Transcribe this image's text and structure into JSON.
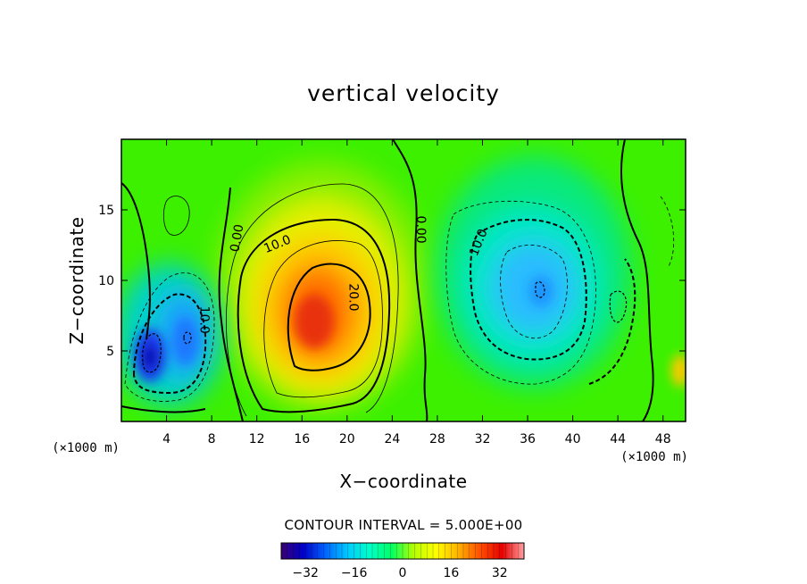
{
  "chart_data": {
    "type": "contour",
    "title": "vertical velocity",
    "xlabel": "X−coordinate",
    "ylabel": "Z−coordinate",
    "x_unit_label": "(×1000 m)",
    "z_unit_label": "(×1000 m)",
    "xlim": [
      0,
      50
    ],
    "ylim": [
      0,
      20
    ],
    "x_ticks": [
      4,
      8,
      12,
      16,
      20,
      24,
      28,
      32,
      36,
      40,
      44,
      48
    ],
    "y_ticks": [
      5,
      10,
      15
    ],
    "contour_interval_text": "CONTOUR INTERVAL = 5.000E+00",
    "contour_interval": 5.0,
    "colorbar": {
      "range": [
        -40,
        40
      ],
      "ticks": [
        -32,
        -16,
        0,
        16,
        32
      ],
      "tick_labels": [
        "−32",
        "−16",
        "0",
        "16",
        "32"
      ],
      "colors": [
        "#3a0070",
        "#0000c8",
        "#0064ff",
        "#00c8ff",
        "#00ffc8",
        "#00ff64",
        "#b4ff00",
        "#ffff00",
        "#ffb400",
        "#ff5000",
        "#e60000",
        "#ffa0a0"
      ]
    },
    "contour_labels": [
      {
        "text": "0.00",
        "x": 10.2,
        "z": 13.0,
        "rotate": -80
      },
      {
        "text": "10.0",
        "x": 13.8,
        "z": 12.6,
        "rotate": -22
      },
      {
        "text": "20.0",
        "x": 20.6,
        "z": 8.8,
        "rotate": 90
      },
      {
        "text": "0.00",
        "x": 26.6,
        "z": 13.6,
        "rotate": 90
      },
      {
        "text": "10.0",
        "x": 31.6,
        "z": 12.7,
        "rotate": -68
      },
      {
        "text": "10.0",
        "x": 7.4,
        "z": 7.2,
        "rotate": 90
      }
    ],
    "features": [
      {
        "kind": "updraft",
        "x": 17.5,
        "z": 7.5,
        "peak": 28
      },
      {
        "kind": "downdraft",
        "x": 2.8,
        "z": 4.7,
        "peak": -30
      },
      {
        "kind": "downdraft",
        "x": 6.0,
        "z": 6.0,
        "peak": -20
      },
      {
        "kind": "downdraft",
        "x": 36.5,
        "z": 9.5,
        "peak": -16
      }
    ]
  }
}
